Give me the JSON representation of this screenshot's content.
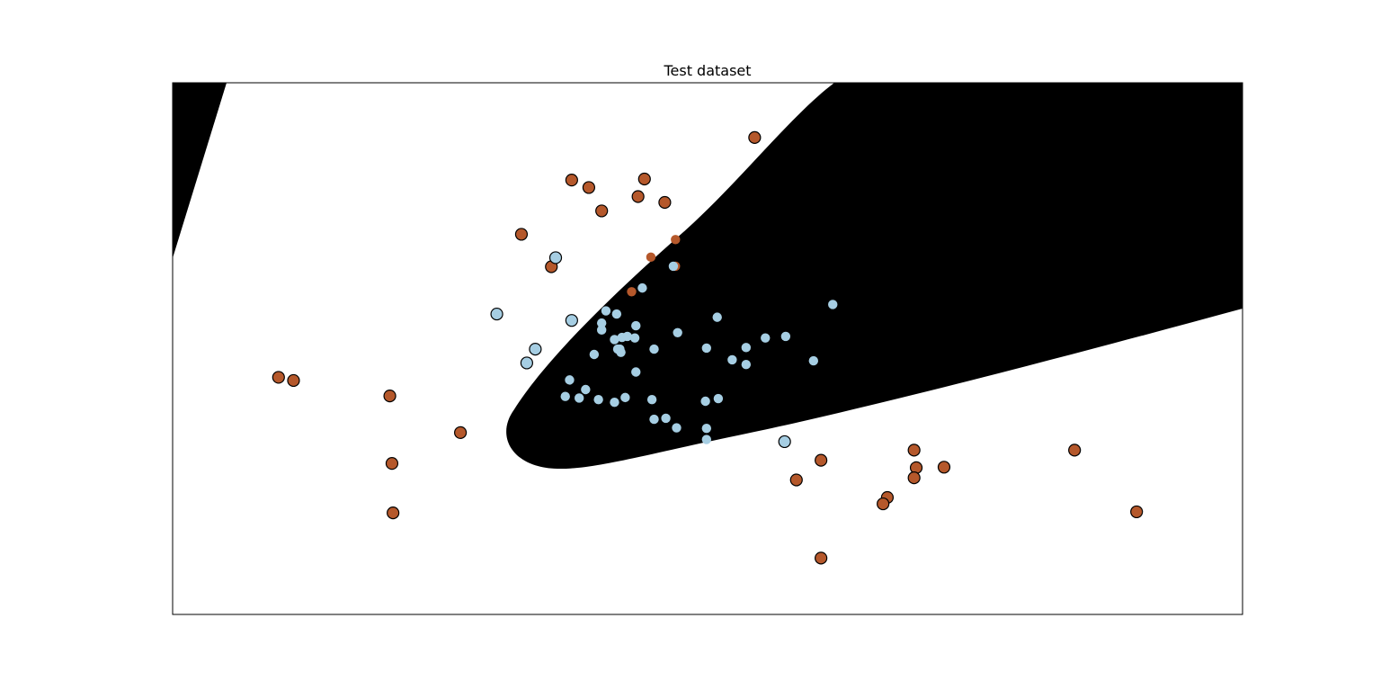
{
  "chart_data": {
    "type": "scatter",
    "title": "Test dataset",
    "xlabel": "",
    "ylabel": "",
    "xlim": [
      0,
      100
    ],
    "ylim": [
      0,
      100
    ],
    "axes_ticks": "hidden",
    "grid": false,
    "legend": "none",
    "decision_region": {
      "type": "ellipse-like region",
      "fill": "#000000",
      "description_of_class": "predicted inlier region"
    },
    "colors": {
      "class_a": "#b35806",
      "class_a_fill": "#b5582b",
      "class_b_fill": "#a6cee3",
      "marker_edge": "#000000",
      "region": "#000000",
      "background": "#ffffff"
    },
    "series": [
      {
        "class": "a",
        "points_outlined": [
          [
            54.4,
            89.7
          ],
          [
            37.3,
            81.7
          ],
          [
            38.9,
            80.3
          ],
          [
            44.1,
            81.9
          ],
          [
            40.1,
            75.9
          ],
          [
            43.5,
            78.6
          ],
          [
            46.0,
            77.5
          ],
          [
            32.6,
            71.5
          ],
          [
            35.4,
            65.4
          ],
          [
            9.9,
            44.6
          ],
          [
            11.3,
            44.0
          ],
          [
            20.3,
            41.1
          ],
          [
            26.9,
            34.2
          ],
          [
            20.5,
            28.4
          ],
          [
            20.6,
            19.1
          ],
          [
            60.6,
            29.0
          ],
          [
            58.3,
            25.3
          ],
          [
            69.3,
            30.9
          ],
          [
            69.5,
            27.6
          ],
          [
            72.1,
            27.7
          ],
          [
            69.3,
            25.7
          ],
          [
            66.8,
            22.0
          ],
          [
            66.4,
            20.8
          ],
          [
            60.6,
            10.6
          ],
          [
            84.3,
            30.9
          ],
          [
            90.1,
            19.3
          ]
        ],
        "points_plain": [
          [
            47.0,
            70.5
          ],
          [
            44.7,
            67.2
          ],
          [
            42.9,
            60.7
          ],
          [
            47.0,
            65.5
          ]
        ]
      },
      {
        "class": "b",
        "points_outlined": [
          [
            30.3,
            56.5
          ],
          [
            35.8,
            67.1
          ],
          [
            37.3,
            55.3
          ],
          [
            33.9,
            49.9
          ],
          [
            33.1,
            47.3
          ],
          [
            57.2,
            32.5
          ]
        ],
        "points_plain": [
          [
            46.8,
            65.5
          ],
          [
            43.9,
            61.4
          ],
          [
            40.5,
            57.1
          ],
          [
            41.5,
            56.5
          ],
          [
            43.3,
            54.3
          ],
          [
            50.9,
            55.9
          ],
          [
            61.7,
            58.3
          ],
          [
            40.1,
            53.5
          ],
          [
            47.2,
            53.0
          ],
          [
            42.5,
            52.3
          ],
          [
            42.0,
            52.1
          ],
          [
            41.3,
            51.7
          ],
          [
            41.8,
            49.9
          ],
          [
            45.0,
            49.9
          ],
          [
            49.9,
            50.1
          ],
          [
            53.6,
            50.2
          ],
          [
            55.4,
            52.0
          ],
          [
            57.3,
            52.3
          ],
          [
            41.9,
            49.3
          ],
          [
            41.6,
            49.9
          ],
          [
            39.4,
            48.9
          ],
          [
            52.3,
            47.9
          ],
          [
            53.6,
            47.0
          ],
          [
            59.9,
            47.7
          ],
          [
            43.3,
            45.6
          ],
          [
            37.1,
            44.1
          ],
          [
            38.6,
            42.3
          ],
          [
            36.7,
            41.0
          ],
          [
            38.0,
            40.7
          ],
          [
            39.8,
            40.4
          ],
          [
            41.3,
            39.9
          ],
          [
            42.3,
            40.8
          ],
          [
            44.8,
            40.4
          ],
          [
            49.8,
            40.1
          ],
          [
            51.0,
            40.6
          ],
          [
            46.1,
            36.9
          ],
          [
            45.0,
            36.7
          ],
          [
            47.1,
            35.1
          ],
          [
            49.9,
            35.0
          ],
          [
            49.9,
            32.9
          ],
          [
            40.1,
            54.8
          ],
          [
            43.2,
            52.0
          ]
        ]
      }
    ]
  }
}
